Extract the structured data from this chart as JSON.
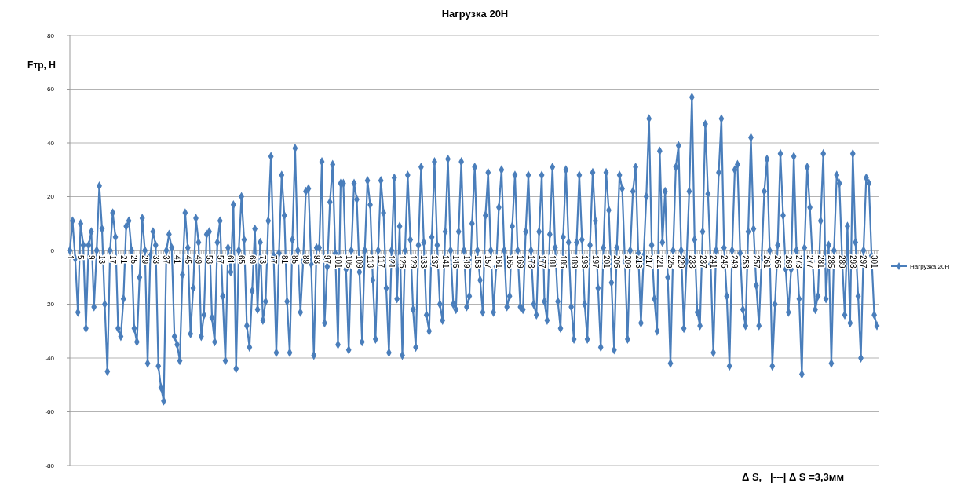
{
  "chart_data": {
    "type": "line",
    "title": "Нагрузка 20Н",
    "ylabel": "Fтр, Н",
    "xlabel": "Δ S,   |---| Δ S =3,3мм",
    "categories": [
      "1",
      null,
      null,
      null,
      "5",
      null,
      null,
      null,
      "9",
      null,
      null,
      null,
      "13",
      null,
      null,
      null,
      "17",
      null,
      null,
      null,
      "21",
      null,
      null,
      null,
      "25",
      null,
      null,
      null,
      "29",
      null,
      null,
      null,
      "33",
      null,
      null,
      null,
      "37",
      null,
      null,
      null,
      "41",
      null,
      null,
      null,
      "45",
      null,
      null,
      null,
      "49",
      null,
      null,
      null,
      "53",
      null,
      null,
      null,
      "57",
      null,
      null,
      null,
      "61",
      null,
      null,
      null,
      "65",
      null,
      null,
      null,
      "69",
      null,
      null,
      null,
      "73",
      null,
      null,
      null,
      "77",
      null,
      null,
      null,
      "81",
      null,
      null,
      null,
      "85",
      null,
      null,
      null,
      "89",
      null,
      null,
      null,
      "93",
      null,
      null,
      null,
      "97",
      null,
      null,
      null,
      "101",
      null,
      null,
      null,
      "105",
      null,
      null,
      null,
      "109",
      null,
      null,
      null,
      "113",
      null,
      null,
      null,
      "117",
      null,
      null,
      null,
      "121",
      null,
      null,
      null,
      "125",
      null,
      null,
      null,
      "129",
      null,
      null,
      null,
      "133",
      null,
      null,
      null,
      "137",
      null,
      null,
      null,
      "141",
      null,
      null,
      null,
      "145",
      null,
      null,
      null,
      "149",
      null,
      null,
      null,
      "153",
      null,
      null,
      null,
      "157",
      null,
      null,
      null,
      "161",
      null,
      null,
      null,
      "165",
      null,
      null,
      null,
      "169",
      null,
      null,
      null,
      "173",
      null,
      null,
      null,
      "177",
      null,
      null,
      null,
      "181",
      null,
      null,
      null,
      "185",
      null,
      null,
      null,
      "189",
      null,
      null,
      null,
      "193",
      null,
      null,
      null,
      "197",
      null,
      null,
      null,
      "201",
      null,
      null,
      null,
      "205",
      null,
      null,
      null,
      "209",
      null,
      null,
      null,
      "213",
      null,
      null,
      null,
      "217",
      null,
      null,
      null,
      "221",
      null,
      null,
      null,
      "225",
      null,
      null,
      null,
      "229",
      null,
      null,
      null,
      "233",
      null,
      null,
      null,
      "237",
      null,
      null,
      null,
      "241",
      null,
      null,
      null,
      "245",
      null,
      null,
      null,
      "249",
      null,
      null,
      null,
      "253",
      null,
      null,
      null,
      "257",
      null,
      null,
      null,
      "261",
      null,
      null,
      null,
      "265",
      null,
      null,
      null,
      "269",
      null,
      null,
      null,
      "273",
      null,
      null,
      null,
      "277",
      null,
      null,
      null,
      "281",
      null,
      null,
      null,
      "285",
      null,
      null,
      null,
      "289",
      null,
      null,
      null,
      "293",
      null,
      null,
      null,
      "297",
      null,
      null,
      null,
      "301",
      null
    ],
    "series": [
      {
        "name": "Нагрузка 20Н",
        "color": "#4a7ebb",
        "values": [
          0,
          11,
          -3,
          -23,
          10,
          2,
          -29,
          2,
          7,
          -21,
          0,
          24,
          8,
          -20,
          -45,
          0,
          14,
          5,
          -29,
          -32,
          -18,
          9,
          11,
          0,
          -29,
          -34,
          -10,
          12,
          0,
          -42,
          -2,
          7,
          2,
          -43,
          -51,
          -56,
          0,
          6,
          1,
          -32,
          -35,
          -41,
          -9,
          14,
          1,
          -31,
          -14,
          12,
          3,
          -32,
          -24,
          6,
          7,
          -25,
          -34,
          3,
          11,
          -17,
          -41,
          1,
          -8,
          17,
          -44,
          0,
          20,
          4,
          -28,
          -36,
          -15,
          8,
          -22,
          3,
          -26,
          -19,
          11,
          35,
          -2,
          -38,
          -1,
          28,
          13,
          -19,
          -38,
          4,
          38,
          0,
          -23,
          -4,
          22,
          23,
          -5,
          -39,
          1,
          1,
          33,
          -27,
          -6,
          18,
          32,
          -1,
          -35,
          25,
          25,
          -7,
          -37,
          0,
          25,
          19,
          -8,
          -34,
          0,
          26,
          17,
          -11,
          -33,
          0,
          26,
          14,
          -14,
          -38,
          0,
          27,
          -18,
          9,
          -39,
          0,
          28,
          4,
          -22,
          -36,
          2,
          31,
          3,
          -24,
          -30,
          5,
          33,
          2,
          -20,
          -26,
          7,
          34,
          0,
          -20,
          -22,
          7,
          33,
          0,
          -21,
          -17,
          10,
          31,
          0,
          -11,
          -23,
          13,
          29,
          0,
          -23,
          -6,
          16,
          30,
          0,
          -21,
          -17,
          9,
          28,
          0,
          -21,
          -22,
          7,
          28,
          0,
          -20,
          -24,
          7,
          28,
          -19,
          -26,
          6,
          31,
          1,
          -19,
          -29,
          5,
          30,
          3,
          -21,
          -33,
          3,
          28,
          4,
          -20,
          -33,
          2,
          29,
          11,
          -14,
          -36,
          1,
          29,
          15,
          -12,
          -37,
          1,
          28,
          23,
          -4,
          -33,
          0,
          22,
          31,
          -1,
          -27,
          -2,
          20,
          49,
          2,
          -18,
          -30,
          37,
          3,
          22,
          -10,
          -42,
          0,
          31,
          39,
          0,
          -29,
          -4,
          22,
          57,
          4,
          -23,
          -28,
          7,
          47,
          21,
          -5,
          -38,
          0,
          29,
          49,
          1,
          -17,
          -43,
          0,
          30,
          32,
          -1,
          -22,
          -28,
          7,
          42,
          8,
          -13,
          -28,
          -3,
          22,
          34,
          0,
          -43,
          -20,
          2,
          36,
          13,
          -7,
          -23,
          -7,
          35,
          0,
          -18,
          -46,
          1,
          31,
          16,
          -4,
          -22,
          -17,
          11,
          36,
          -18,
          2,
          -42,
          0,
          28,
          25,
          -3,
          -24,
          9,
          -27,
          36,
          3,
          -17,
          -40,
          0,
          27,
          25,
          -2,
          -24,
          -28
        ]
      }
    ],
    "ylim": [
      -80,
      80
    ],
    "yticks": [
      -80,
      -60,
      -40,
      -20,
      0,
      20,
      40,
      60,
      80
    ],
    "grid": "y",
    "legend": "right",
    "marker": "diamond",
    "line_style": "solid"
  }
}
